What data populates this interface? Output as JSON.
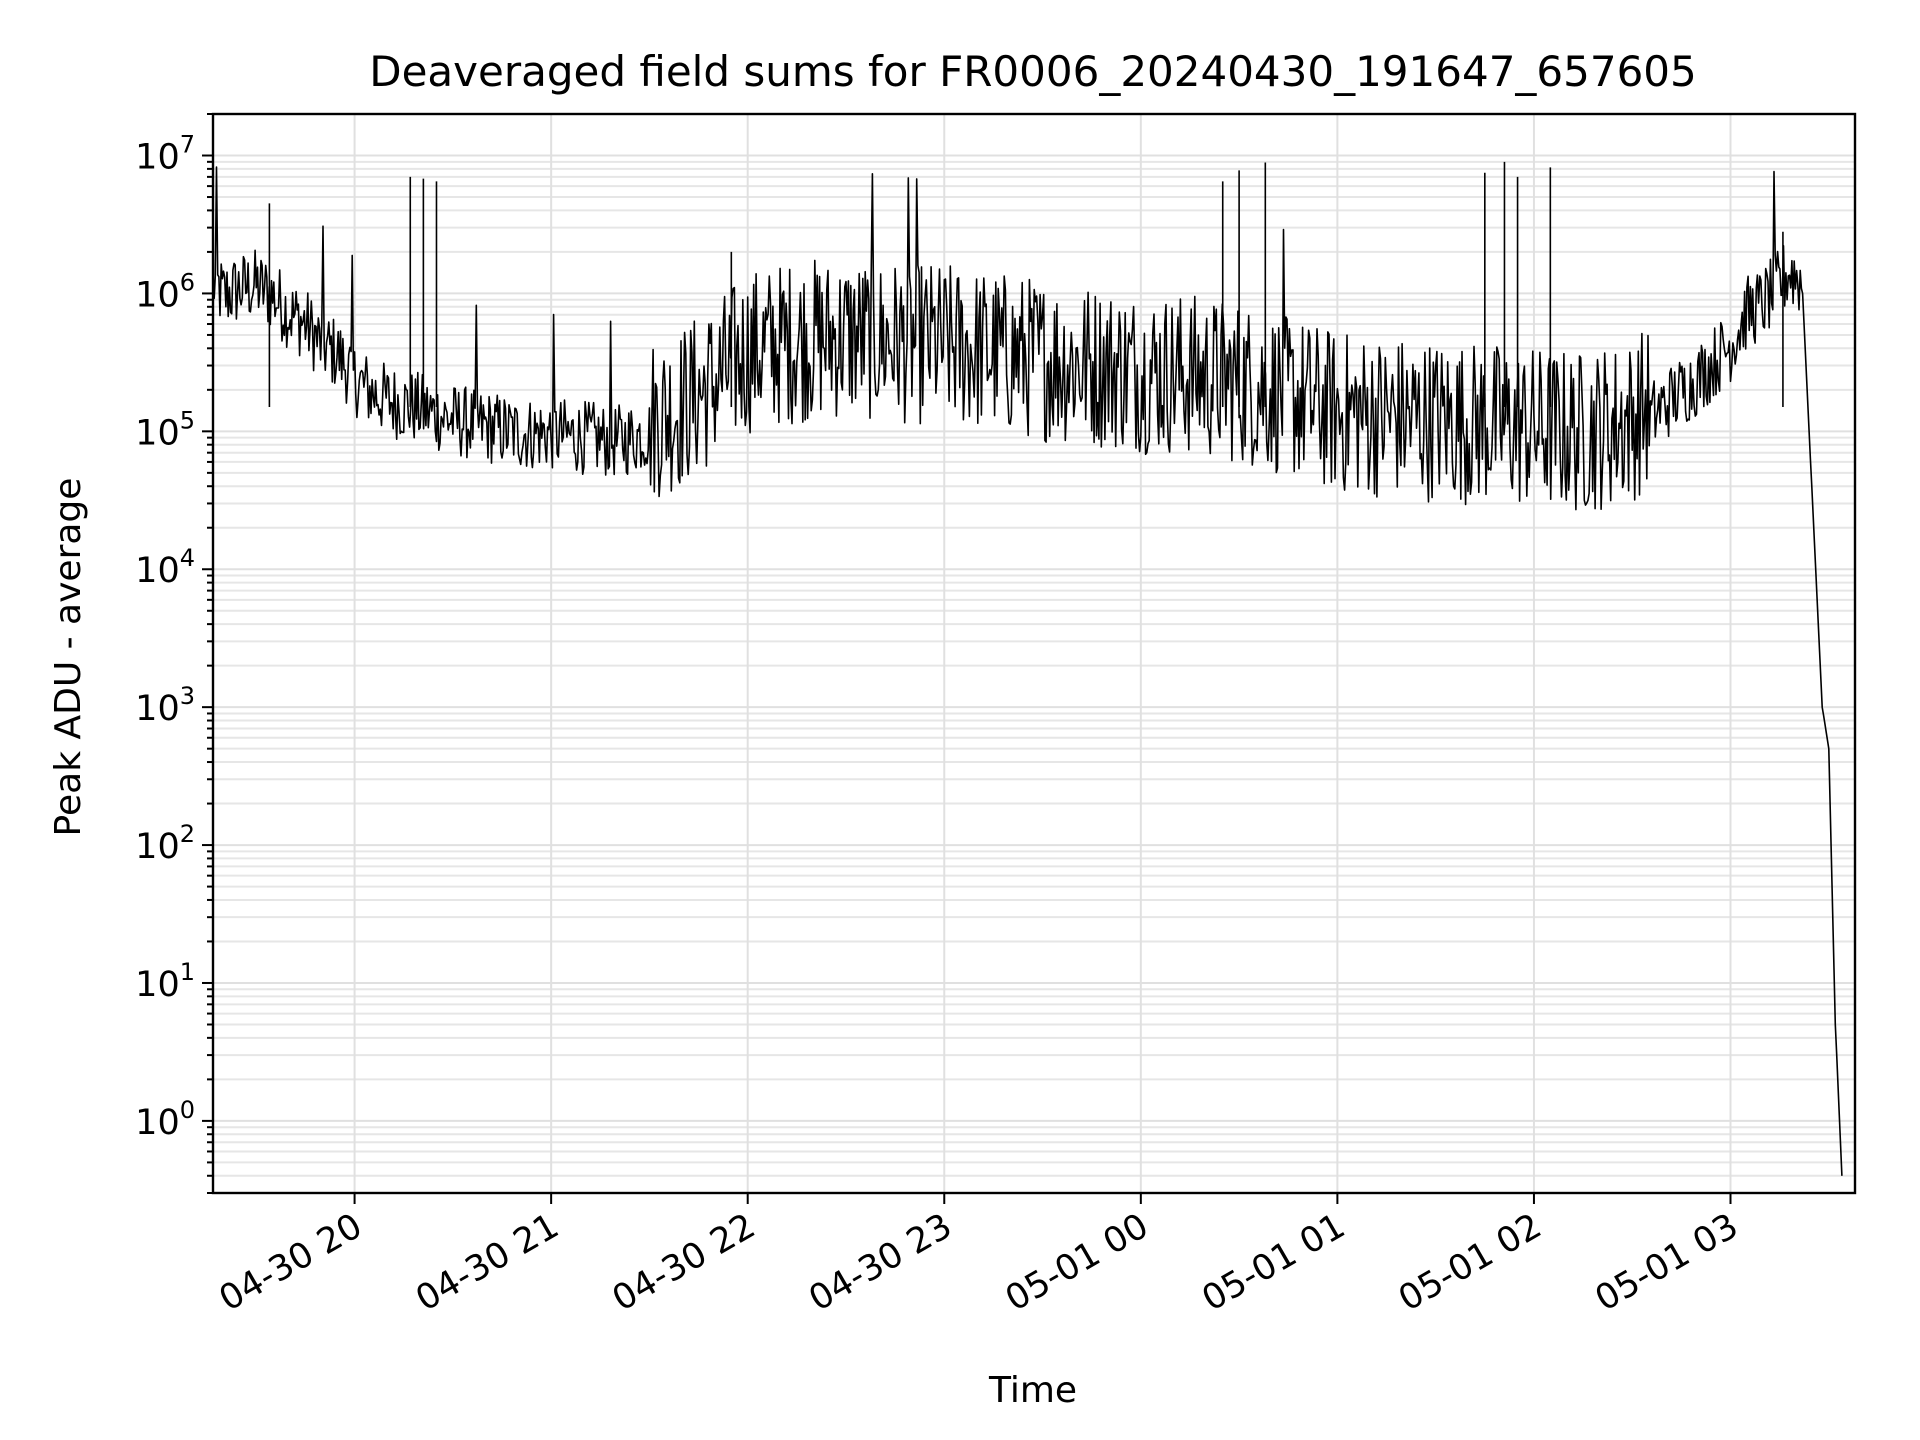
{
  "chart_data": {
    "type": "line",
    "title": "Deaveraged field sums for FR0006_20240430_191647_657605",
    "xlabel": "Time",
    "ylabel": "Peak ADU - average",
    "x_scale": "time",
    "y_scale": "log",
    "xlim": [
      "2024-04-30 19:16:47",
      "2024-05-01 03:38:00"
    ],
    "ylim": [
      0.3,
      20000000
    ],
    "grid": true,
    "x_ticks": [
      {
        "t": "2024-04-30 20:00",
        "label": "04-30 20"
      },
      {
        "t": "2024-04-30 21:00",
        "label": "04-30 21"
      },
      {
        "t": "2024-04-30 22:00",
        "label": "04-30 22"
      },
      {
        "t": "2024-04-30 23:00",
        "label": "04-30 23"
      },
      {
        "t": "2024-05-01 00:00",
        "label": "05-01 00"
      },
      {
        "t": "2024-05-01 01:00",
        "label": "05-01 01"
      },
      {
        "t": "2024-05-01 02:00",
        "label": "05-01 02"
      },
      {
        "t": "2024-05-01 03:00",
        "label": "05-01 03"
      }
    ],
    "y_ticks": [
      {
        "value": 1,
        "base": "10",
        "exp": "0"
      },
      {
        "value": 10,
        "base": "10",
        "exp": "1"
      },
      {
        "value": 100,
        "base": "10",
        "exp": "2"
      },
      {
        "value": 1000,
        "base": "10",
        "exp": "3"
      },
      {
        "value": 10000,
        "base": "10",
        "exp": "4"
      },
      {
        "value": 100000,
        "base": "10",
        "exp": "5"
      },
      {
        "value": 1000000,
        "base": "10",
        "exp": "6"
      },
      {
        "value": 10000000,
        "base": "10",
        "exp": "7"
      }
    ],
    "series": [
      {
        "color": "#000000",
        "x": [
          "2024-04-30 19:16:47",
          "2024-04-30 19:20",
          "2024-04-30 19:25",
          "2024-04-30 19:30",
          "2024-04-30 19:35",
          "2024-04-30 19:40",
          "2024-04-30 19:45",
          "2024-04-30 19:50",
          "2024-04-30 19:55",
          "2024-04-30 20:00",
          "2024-04-30 20:05",
          "2024-04-30 20:10",
          "2024-04-30 20:15",
          "2024-04-30 20:20",
          "2024-04-30 20:25",
          "2024-04-30 20:30",
          "2024-04-30 20:35",
          "2024-04-30 20:40",
          "2024-04-30 20:45",
          "2024-04-30 20:50",
          "2024-04-30 20:55",
          "2024-04-30 21:00",
          "2024-04-30 21:10",
          "2024-04-30 21:20",
          "2024-04-30 21:30",
          "2024-04-30 21:40",
          "2024-04-30 21:50",
          "2024-04-30 22:00",
          "2024-04-30 22:15",
          "2024-04-30 22:30",
          "2024-04-30 22:45",
          "2024-04-30 23:00",
          "2024-04-30 23:15",
          "2024-04-30 23:30",
          "2024-04-30 23:45",
          "2024-05-01 00:00",
          "2024-05-01 00:15",
          "2024-05-01 00:30",
          "2024-05-01 00:45",
          "2024-05-01 01:00",
          "2024-05-01 01:15",
          "2024-05-01 01:30",
          "2024-05-01 01:45",
          "2024-05-01 02:00",
          "2024-05-01 02:15",
          "2024-05-01 02:30",
          "2024-05-01 02:40",
          "2024-05-01 02:50",
          "2024-05-01 03:00",
          "2024-05-01 03:05",
          "2024-05-01 03:10",
          "2024-05-01 03:14",
          "2024-05-01 03:18",
          "2024-05-01 03:22",
          "2024-05-01 03:24",
          "2024-05-01 03:26",
          "2024-05-01 03:28",
          "2024-05-01 03:30",
          "2024-05-01 03:32",
          "2024-05-01 03:34"
        ],
        "y": [
          1000000,
          800000,
          900000,
          950000,
          800000,
          600000,
          500000,
          350000,
          300000,
          200000,
          160000,
          140000,
          130000,
          120000,
          110000,
          100000,
          95000,
          90000,
          85000,
          80000,
          80000,
          80000,
          75000,
          70000,
          80000,
          100000,
          150000,
          250000,
          300000,
          320000,
          300000,
          280000,
          250000,
          220000,
          200000,
          180000,
          170000,
          150000,
          120000,
          90000,
          85000,
          80000,
          75000,
          70000,
          65000,
          80000,
          130000,
          200000,
          350000,
          600000,
          700000,
          900000,
          1200000,
          1000000,
          100000,
          10000,
          1000,
          500,
          5,
          0.4
        ]
      }
    ],
    "spikes": [
      {
        "x": "2024-04-30 19:34",
        "y": 4500000
      },
      {
        "x": "2024-04-30 20:17",
        "y": 7000000
      },
      {
        "x": "2024-04-30 20:21",
        "y": 6800000
      },
      {
        "x": "2024-04-30 20:25",
        "y": 6500000
      },
      {
        "x": "2024-04-30 21:55",
        "y": 2000000
      },
      {
        "x": "2024-05-01 00:25",
        "y": 6500000
      },
      {
        "x": "2024-05-01 00:30",
        "y": 7800000
      },
      {
        "x": "2024-05-01 00:38",
        "y": 8900000
      },
      {
        "x": "2024-05-01 01:45",
        "y": 7500000
      },
      {
        "x": "2024-05-01 01:51",
        "y": 9000000
      },
      {
        "x": "2024-05-01 01:55",
        "y": 7000000
      },
      {
        "x": "2024-05-01 02:05",
        "y": 8200000
      },
      {
        "x": "2024-05-01 03:16",
        "y": 2800000
      }
    ]
  }
}
